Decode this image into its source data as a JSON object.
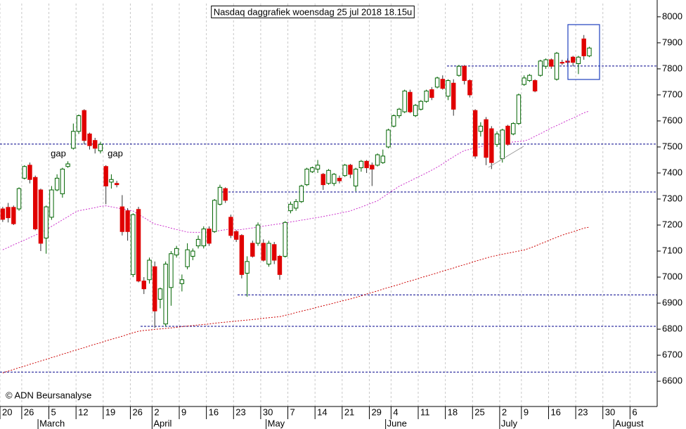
{
  "chart_data": {
    "type": "candlestick",
    "title": "Nasdaq daggrafiek woensdag 25 jul 2018 18.15u",
    "source": "© ADN Beursanalyse",
    "annotations": [
      "gap",
      "gap"
    ],
    "categories": [
      "20",
      null,
      null,
      null,
      "26",
      null,
      null,
      null,
      null,
      "5",
      null,
      null,
      null,
      null,
      "12",
      null,
      null,
      null,
      null,
      "19",
      null,
      null,
      null,
      null,
      "26",
      null,
      null,
      null,
      "2",
      null,
      null,
      null,
      null,
      "9",
      null,
      null,
      null,
      null,
      "16",
      null,
      null,
      null,
      null,
      "23",
      null,
      null,
      null,
      null,
      "30",
      null,
      null,
      null,
      null,
      "7",
      null,
      null,
      null,
      null,
      "14",
      null,
      null,
      null,
      null,
      "21",
      null,
      null,
      null,
      null,
      "29",
      null,
      null,
      null,
      "4",
      null,
      null,
      null,
      null,
      "11",
      null,
      null,
      null,
      null,
      "18",
      null,
      null,
      null,
      null,
      "25",
      null,
      null,
      null,
      null,
      "2",
      null,
      null,
      null,
      "9",
      null,
      null,
      null,
      null,
      "16",
      null,
      null,
      null,
      null,
      "23",
      null,
      null,
      null,
      null,
      "30",
      null,
      null,
      null,
      null,
      "6",
      null,
      null,
      null,
      null
    ],
    "months": [
      null,
      null,
      null,
      null,
      null,
      null,
      null,
      "March",
      null,
      null,
      null,
      null,
      null,
      null,
      null,
      null,
      null,
      null,
      null,
      null,
      null,
      null,
      null,
      null,
      null,
      null,
      null,
      null,
      "April",
      null,
      null,
      null,
      null,
      null,
      null,
      null,
      null,
      null,
      null,
      null,
      null,
      null,
      null,
      null,
      null,
      null,
      null,
      null,
      null,
      "May",
      null,
      null,
      null,
      null,
      null,
      null,
      null,
      null,
      null,
      null,
      null,
      null,
      null,
      null,
      null,
      null,
      null,
      null,
      null,
      null,
      null,
      "June",
      null,
      null,
      null,
      null,
      null,
      null,
      null,
      null,
      null,
      null,
      null,
      null,
      null,
      null,
      null,
      null,
      null,
      null,
      null,
      null,
      "July",
      null,
      null,
      null,
      null,
      null,
      null,
      null,
      null,
      null,
      null,
      null,
      null,
      null,
      null,
      null,
      null,
      null,
      null,
      null,
      null,
      "August",
      null,
      null,
      null,
      null,
      null,
      null,
      null
    ],
    "open": [
      7262,
      7268,
      7268,
      7262,
      7380,
      7430,
      7383,
      7335,
      7150,
      7230,
      7335,
      7320,
      7425,
      7495,
      7560,
      7640,
      7550,
      7525,
      7485,
      7425,
      7365,
      7360,
      7270,
      7255,
      7010,
      7260,
      6985,
      6990,
      7040,
      6915,
      6820,
      6960,
      7085,
      6975,
      7040,
      7080,
      7120,
      7120,
      7185,
      7175,
      7280,
      7340,
      7230,
      7175,
      7160,
      7015,
      7130,
      7130,
      7130,
      7050,
      7125,
      7080,
      7080,
      7255,
      7265,
      7290,
      7355,
      7405,
      7415,
      7395,
      7360,
      7360,
      7380,
      7390,
      7430,
      7350,
      7420,
      7445,
      7430,
      7430,
      7440,
      7500,
      7580,
      7620,
      7635,
      7710,
      7620,
      7645,
      7675,
      7720,
      7730,
      7760,
      7695,
      7745,
      7775,
      7810,
      7755,
      7640,
      7560,
      7605,
      7570,
      7510,
      7455,
      7580,
      7550,
      7590,
      7740,
      7755,
      7755,
      7775,
      7810,
      7835,
      7760,
      7825,
      7830,
      7845,
      7820,
      7915,
      7850,
      null,
      null,
      null,
      null,
      null,
      null,
      null,
      null,
      null,
      null,
      null,
      null
    ],
    "high": [
      7270,
      7285,
      7275,
      7345,
      7430,
      7440,
      7390,
      7340,
      7275,
      7350,
      7395,
      7420,
      7445,
      7590,
      7625,
      7645,
      7555,
      7535,
      7520,
      7430,
      7395,
      7370,
      7315,
      7265,
      7245,
      7270,
      7000,
      7075,
      7060,
      6960,
      7060,
      7100,
      7120,
      7010,
      7130,
      7110,
      7160,
      7195,
      7195,
      7300,
      7355,
      7345,
      7240,
      7180,
      7165,
      7080,
      7140,
      7210,
      7145,
      7140,
      7135,
      7085,
      7215,
      7290,
      7300,
      7355,
      7420,
      7425,
      7450,
      7400,
      7415,
      7400,
      7390,
      7435,
      7435,
      7420,
      7450,
      7450,
      7440,
      7475,
      7490,
      7570,
      7625,
      7650,
      7720,
      7720,
      7665,
      7680,
      7720,
      7730,
      7770,
      7775,
      7760,
      7760,
      7815,
      7815,
      7760,
      7645,
      7595,
      7615,
      7580,
      7560,
      7570,
      7585,
      7595,
      7705,
      7775,
      7780,
      7760,
      7835,
      7840,
      7840,
      7865,
      7835,
      7840,
      7850,
      7850,
      7930,
      7885,
      null,
      null,
      null,
      null,
      null,
      null,
      null,
      null,
      null,
      null,
      null,
      null
    ],
    "low": [
      7212,
      7210,
      7200,
      7255,
      7375,
      7360,
      7180,
      7100,
      7090,
      7220,
      7330,
      7305,
      7420,
      7490,
      7550,
      7510,
      7490,
      7475,
      7475,
      7280,
      7340,
      7345,
      7160,
      7140,
      7000,
      6980,
      6935,
      6975,
      6805,
      6880,
      6810,
      6890,
      7075,
      6945,
      7030,
      7065,
      7110,
      7110,
      7120,
      7170,
      7275,
      7285,
      7150,
      7135,
      6995,
      6925,
      7075,
      7120,
      7060,
      7040,
      7050,
      6990,
      7075,
      7245,
      7255,
      7285,
      7350,
      7400,
      7400,
      7335,
      7355,
      7350,
      7360,
      7385,
      7380,
      7330,
      7405,
      7400,
      7350,
      7425,
      7435,
      7495,
      7575,
      7610,
      7630,
      7630,
      7615,
      7640,
      7670,
      7680,
      7725,
      7720,
      7680,
      7620,
      7770,
      7740,
      7690,
      7455,
      7540,
      7430,
      7415,
      7500,
      7440,
      7505,
      7545,
      7585,
      7735,
      7750,
      7710,
      7770,
      7800,
      7800,
      7755,
      7815,
      7815,
      7810,
      7780,
      7835,
      7845,
      null,
      null,
      null,
      null,
      null,
      null,
      null,
      null,
      null,
      null,
      null,
      null
    ],
    "close": [
      7222,
      7228,
      7205,
      7340,
      7425,
      7375,
      7185,
      7130,
      7270,
      7335,
      7380,
      7415,
      7435,
      7560,
      7620,
      7525,
      7505,
      7495,
      7510,
      7350,
      7375,
      7355,
      7175,
      7175,
      7240,
      6985,
      6955,
      7065,
      6870,
      6955,
      7050,
      7090,
      7110,
      6990,
      7105,
      7100,
      7145,
      7185,
      7130,
      7295,
      7345,
      7295,
      7160,
      7145,
      7010,
      7060,
      7080,
      7200,
      7065,
      7130,
      7065,
      7010,
      7210,
      7280,
      7290,
      7350,
      7415,
      7420,
      7430,
      7355,
      7410,
      7395,
      7370,
      7430,
      7395,
      7415,
      7445,
      7420,
      7415,
      7470,
      7465,
      7565,
      7620,
      7645,
      7715,
      7635,
      7660,
      7675,
      7715,
      7690,
      7765,
      7725,
      7755,
      7645,
      7810,
      7755,
      7700,
      7465,
      7580,
      7460,
      7440,
      7550,
      7565,
      7510,
      7590,
      7700,
      7765,
      7775,
      7715,
      7830,
      7835,
      7810,
      7860,
      7822,
      7825,
      7825,
      7845,
      7850,
      7880,
      null,
      null,
      null,
      null,
      null,
      null,
      null,
      null,
      null,
      null,
      null,
      null
    ],
    "up_color": "#006400",
    "down_color": "#e00000",
    "moving_averages": [
      {
        "color": "#cc33cc",
        "values": [
          7105,
          7114,
          7124,
          7133,
          7142,
          7152,
          7161,
          7170,
          7182,
          7195,
          7207,
          7220,
          7232,
          7245,
          7255,
          7259,
          7263,
          7267,
          7272,
          7274,
          7270,
          7266,
          7262,
          7258,
          7254,
          7241,
          7229,
          7216,
          7204,
          7199,
          7194,
          7188,
          7183,
          7178,
          7173,
          7172,
          7172,
          7172,
          7172,
          7175,
          7179,
          7182,
          7186,
          7181,
          7183,
          7186,
          7189,
          7192,
          7196,
          7199,
          7202,
          7205,
          7208,
          7212,
          7215,
          7219,
          7222,
          7226,
          7229,
          7233,
          7237,
          7241,
          7245,
          7250,
          7254,
          7262,
          7269,
          7277,
          7285,
          7293,
          7307,
          7321,
          7335,
          7349,
          7359,
          7369,
          7380,
          7390,
          7400,
          7411,
          7422,
          7435,
          7449,
          7462,
          7475,
          7486,
          7491,
          7496,
          7501,
          7507,
          7511,
          7513,
          7515,
          7517,
          7519,
          7521,
          7523,
          7530,
          7541,
          7551,
          7562,
          7573,
          7582,
          7592,
          7602,
          7611,
          7621,
          7631,
          7638,
          null,
          null,
          null,
          null,
          null,
          null,
          null,
          null,
          null,
          null,
          null,
          null
        ]
      },
      {
        "color": "#cc0000",
        "values": [
          6632,
          6639,
          6645,
          6652,
          6658,
          6665,
          6671,
          6678,
          6684,
          6691,
          6697,
          6704,
          6710,
          6717,
          6723,
          6729,
          6736,
          6742,
          6748,
          6755,
          6761,
          6767,
          6773,
          6780,
          6786,
          6792,
          6795,
          6797,
          6799,
          6801,
          6803,
          6805,
          6807,
          6810,
          6812,
          6814,
          6816,
          6818,
          6820,
          6823,
          6825,
          6827,
          6829,
          6831,
          6833,
          6835,
          6837,
          6839,
          6842,
          6844,
          6846,
          6848,
          6853,
          6858,
          6864,
          6869,
          6874,
          6879,
          6885,
          6890,
          6895,
          6900,
          6906,
          6911,
          6916,
          6922,
          6928,
          6935,
          6941,
          6947,
          6954,
          6960,
          6966,
          6972,
          6979,
          6985,
          6991,
          6998,
          7004,
          7010,
          7016,
          7023,
          7029,
          7035,
          7042,
          7048,
          7054,
          7061,
          7067,
          7073,
          7079,
          7083,
          7088,
          7092,
          7096,
          7100,
          7104,
          7111,
          7119,
          7128,
          7136,
          7145,
          7153,
          7161,
          7168,
          7174,
          7181,
          7188,
          7192,
          null,
          null,
          null,
          null,
          null,
          null,
          null,
          null,
          null,
          null,
          null,
          null
        ]
      }
    ],
    "hlines": [
      7811,
      7511,
      7327,
      6932,
      6811,
      6635
    ],
    "hline_color": "#00008b",
    "ylim": [
      6503,
      8051
    ],
    "yticks": [
      6600,
      6700,
      6800,
      6900,
      7000,
      7100,
      7200,
      7300,
      7400,
      7500,
      7600,
      7700,
      7800,
      7900,
      8000
    ],
    "grid": true
  }
}
